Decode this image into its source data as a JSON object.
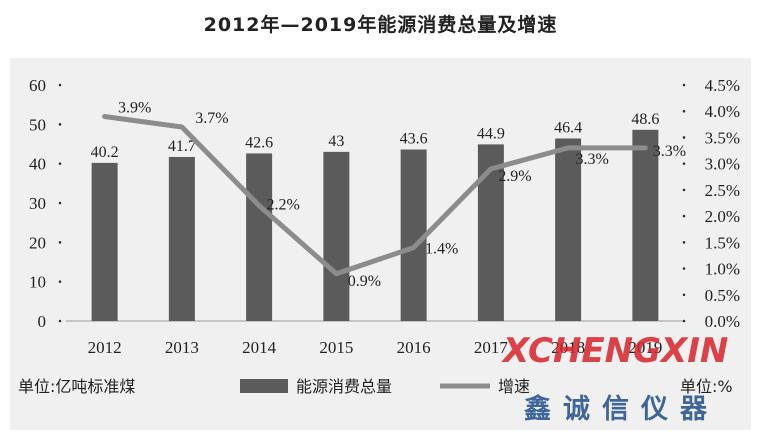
{
  "chart_data": {
    "type": "bar+line",
    "title": "2012年—2019年能源消费总量及增速",
    "categories": [
      "2012",
      "2013",
      "2014",
      "2015",
      "2016",
      "2017",
      "2018",
      "2019"
    ],
    "series": [
      {
        "name": "能源消费总量",
        "type": "bar",
        "axis": "left",
        "values": [
          40.2,
          41.7,
          42.6,
          43,
          43.6,
          44.9,
          46.4,
          48.6
        ],
        "labels": [
          "40.2",
          "41.7",
          "42.6",
          "43",
          "43.6",
          "44.9",
          "46.4",
          "48.6"
        ],
        "color": "#5b5b5b"
      },
      {
        "name": "增速",
        "type": "line",
        "axis": "right",
        "values": [
          3.9,
          3.7,
          2.2,
          0.9,
          1.4,
          2.9,
          3.3,
          3.3
        ],
        "labels": [
          "3.9%",
          "3.7%",
          "2.2%",
          "0.9%",
          "1.4%",
          "2.9%",
          "3.3%",
          "3.3%"
        ],
        "color": "#8c8c8c"
      }
    ],
    "y_left": {
      "min": 0,
      "max": 60,
      "ticks": [
        "0",
        "10",
        "20",
        "30",
        "40",
        "50",
        "60"
      ]
    },
    "y_right": {
      "min": 0,
      "max": 4.5,
      "ticks": [
        "0.0%",
        "0.5%",
        "1.0%",
        "1.5%",
        "2.0%",
        "2.5%",
        "3.0%",
        "3.5%",
        "4.0%",
        "4.5%"
      ]
    },
    "unit_left": "单位:亿吨标准煤",
    "unit_right": "单位:%",
    "legend_placement": "bottom",
    "plot_background": "#f0f0f0"
  },
  "watermark": {
    "latin": "XCHENGXIN",
    "cjk": "鑫诚信仪器"
  }
}
